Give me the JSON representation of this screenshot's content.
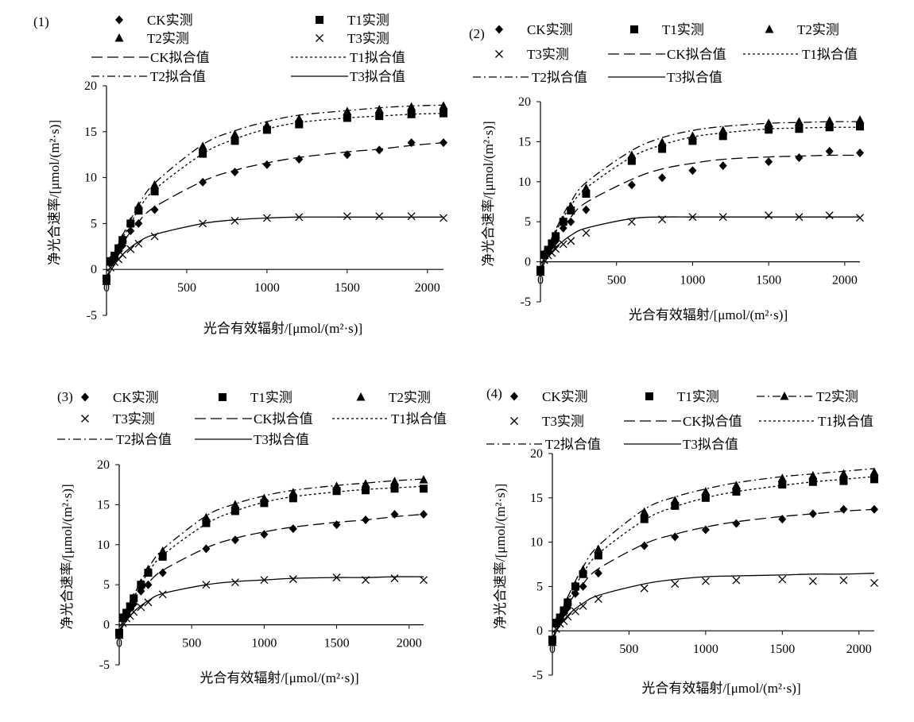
{
  "chart_data": [
    {
      "type": "scatter",
      "panel_label": "(1)",
      "xlabel": "光合有效辐射/[μmol/(m²·s)]",
      "ylabel": "净光合速率/[μmol/(m²·s)]",
      "xlim": [
        0,
        2100
      ],
      "ylim": [
        -5,
        20
      ],
      "x_ticks": [
        0,
        500,
        1000,
        1500,
        2000
      ],
      "y_ticks": [
        -5,
        0,
        5,
        10,
        15,
        20
      ],
      "grid": false,
      "legend_position": "top",
      "x": [
        0,
        25,
        50,
        75,
        100,
        150,
        200,
        300,
        600,
        800,
        1000,
        1200,
        1500,
        1700,
        1900,
        2100
      ],
      "series": [
        {
          "name": "CK实测",
          "kind": "measured",
          "marker": "diamond",
          "values": [
            -1.2,
            1.0,
            1.3,
            2.0,
            2.6,
            4.2,
            5.0,
            6.5,
            9.5,
            10.6,
            11.4,
            12.0,
            12.5,
            13.0,
            13.8,
            13.8
          ]
        },
        {
          "name": "T1实测",
          "kind": "measured",
          "marker": "square",
          "values": [
            -1.0,
            0.9,
            1.5,
            2.3,
            3.2,
            5.0,
            6.4,
            8.5,
            12.6,
            14.0,
            15.2,
            15.8,
            16.5,
            16.7,
            16.9,
            17.0
          ]
        },
        {
          "name": "T2实测",
          "kind": "measured",
          "marker": "triangle",
          "values": [
            -1.3,
            0.8,
            1.4,
            2.4,
            3.4,
            5.2,
            6.9,
            9.2,
            13.4,
            14.7,
            15.7,
            16.4,
            17.2,
            17.4,
            17.7,
            17.8
          ]
        },
        {
          "name": "T3实测",
          "kind": "measured",
          "marker": "cross",
          "values": [
            -1.1,
            0.2,
            0.8,
            1.1,
            1.6,
            2.2,
            2.8,
            3.6,
            5.0,
            5.3,
            5.6,
            5.7,
            5.8,
            5.8,
            5.8,
            5.6
          ]
        },
        {
          "name": "CK拟合值",
          "kind": "fit",
          "dash": "long-dash",
          "values": [
            -1.3,
            0.3,
            1.2,
            2.0,
            2.8,
            4.1,
            5.2,
            6.8,
            9.6,
            10.8,
            11.6,
            12.2,
            12.8,
            13.1,
            13.5,
            13.8
          ]
        },
        {
          "name": "T1拟合值",
          "kind": "fit",
          "dash": "dotted",
          "values": [
            -1.2,
            0.6,
            1.6,
            2.5,
            3.4,
            5.0,
            6.5,
            8.7,
            12.6,
            14.2,
            15.3,
            16.0,
            16.5,
            16.7,
            16.9,
            17.0
          ]
        },
        {
          "name": "T2拟合值",
          "kind": "fit",
          "dash": "dash-dot",
          "values": [
            -1.3,
            0.7,
            1.7,
            2.7,
            3.7,
            5.4,
            7.0,
            9.4,
            13.6,
            15.1,
            16.1,
            16.8,
            17.3,
            17.6,
            17.8,
            17.9
          ]
        },
        {
          "name": "T3拟合值",
          "kind": "fit",
          "dash": "solid",
          "values": [
            -1.2,
            -0.2,
            0.5,
            1.1,
            1.6,
            2.4,
            3.0,
            3.8,
            5.0,
            5.4,
            5.6,
            5.7,
            5.7,
            5.7,
            5.7,
            5.7
          ]
        }
      ]
    },
    {
      "type": "scatter",
      "panel_label": "(2)",
      "xlabel": "光合有效辐射/[μmol/(m²·s)]",
      "ylabel": "净光合速率/[μmol/(m²·s)]",
      "xlim": [
        0,
        2100
      ],
      "ylim": [
        -5,
        20
      ],
      "x_ticks": [
        0,
        500,
        1000,
        1500,
        2000
      ],
      "y_ticks": [
        -5,
        0,
        5,
        10,
        15,
        20
      ],
      "grid": false,
      "legend_position": "top",
      "x": [
        0,
        25,
        50,
        75,
        100,
        150,
        200,
        300,
        600,
        800,
        1000,
        1200,
        1500,
        1700,
        1900,
        2100
      ],
      "series": [
        {
          "name": "CK实测",
          "kind": "measured",
          "marker": "diamond",
          "values": [
            -1.2,
            1.0,
            1.3,
            2.0,
            2.6,
            4.2,
            5.0,
            6.5,
            9.6,
            10.5,
            11.4,
            12.0,
            12.5,
            13.0,
            13.8,
            13.6
          ]
        },
        {
          "name": "T1实测",
          "kind": "measured",
          "marker": "square",
          "values": [
            -1.0,
            0.9,
            1.5,
            2.3,
            3.2,
            5.0,
            6.4,
            8.5,
            12.6,
            14.1,
            15.1,
            15.7,
            16.5,
            16.6,
            16.8,
            16.9
          ]
        },
        {
          "name": "T2实测",
          "kind": "measured",
          "marker": "triangle",
          "values": [
            -1.3,
            0.8,
            1.4,
            2.4,
            3.4,
            5.2,
            6.9,
            9.2,
            13.3,
            14.9,
            15.7,
            16.4,
            17.3,
            17.5,
            17.6,
            17.7
          ]
        },
        {
          "name": "T3实测",
          "kind": "measured",
          "marker": "cross",
          "values": [
            -1.1,
            0.2,
            0.8,
            1.1,
            1.6,
            2.2,
            2.6,
            3.6,
            5.0,
            5.3,
            5.6,
            5.6,
            5.8,
            5.6,
            5.8,
            5.5
          ]
        },
        {
          "name": "CK拟合值",
          "kind": "fit",
          "dash": "long-dash",
          "values": [
            -1.3,
            0.4,
            1.3,
            2.2,
            3.0,
            4.4,
            5.6,
            7.4,
            10.3,
            11.6,
            12.3,
            12.8,
            13.1,
            13.2,
            13.3,
            13.3
          ]
        },
        {
          "name": "T1拟合值",
          "kind": "fit",
          "dash": "dotted",
          "values": [
            -1.2,
            0.6,
            1.7,
            2.7,
            3.7,
            5.5,
            7.0,
            9.2,
            13.1,
            14.6,
            15.6,
            16.1,
            16.6,
            16.7,
            16.8,
            16.8
          ]
        },
        {
          "name": "T2拟合值",
          "kind": "fit",
          "dash": "dash-dot",
          "values": [
            -1.3,
            0.8,
            1.9,
            3.0,
            4.0,
            5.9,
            7.5,
            9.9,
            13.9,
            15.5,
            16.4,
            16.9,
            17.3,
            17.4,
            17.5,
            17.5
          ]
        },
        {
          "name": "T3拟合值",
          "kind": "fit",
          "dash": "solid",
          "values": [
            -1.2,
            -0.2,
            0.6,
            1.2,
            1.8,
            2.6,
            3.3,
            4.2,
            5.4,
            5.6,
            5.6,
            5.6,
            5.6,
            5.6,
            5.6,
            5.6
          ]
        }
      ]
    },
    {
      "type": "scatter",
      "panel_label": "(3)",
      "xlabel": "光合有效辐射/[μmol/(m²·s)]",
      "ylabel": "净光合速率/[μmol/(m²·s)]",
      "xlim": [
        0,
        2100
      ],
      "ylim": [
        -5,
        20
      ],
      "x_ticks": [
        0,
        500,
        1000,
        1500,
        2000
      ],
      "y_ticks": [
        -5,
        0,
        5,
        10,
        15,
        20
      ],
      "grid": false,
      "legend_position": "top",
      "x": [
        0,
        25,
        50,
        75,
        100,
        150,
        200,
        300,
        600,
        800,
        1000,
        1200,
        1500,
        1700,
        1900,
        2100
      ],
      "series": [
        {
          "name": "CK实测",
          "kind": "measured",
          "marker": "diamond",
          "values": [
            -1.2,
            1.0,
            1.3,
            2.0,
            2.6,
            4.2,
            5.0,
            6.5,
            9.5,
            10.6,
            11.3,
            12.0,
            12.5,
            13.1,
            13.8,
            13.8
          ]
        },
        {
          "name": "T1实测",
          "kind": "measured",
          "marker": "square",
          "values": [
            -1.0,
            0.9,
            1.5,
            2.3,
            3.3,
            5.0,
            6.5,
            8.5,
            12.7,
            14.2,
            15.2,
            15.8,
            16.7,
            16.8,
            17.0,
            17.0
          ]
        },
        {
          "name": "T2实测",
          "kind": "measured",
          "marker": "triangle",
          "values": [
            -1.3,
            0.8,
            1.4,
            2.4,
            3.4,
            5.2,
            6.9,
            9.2,
            13.4,
            15.0,
            15.8,
            16.5,
            17.3,
            17.6,
            17.9,
            18.1
          ]
        },
        {
          "name": "T3实测",
          "kind": "measured",
          "marker": "cross",
          "values": [
            -1.1,
            0.2,
            0.8,
            1.1,
            1.6,
            2.2,
            2.8,
            3.8,
            5.0,
            5.3,
            5.6,
            5.7,
            5.9,
            5.6,
            5.8,
            5.6
          ]
        },
        {
          "name": "CK拟合值",
          "kind": "fit",
          "dash": "long-dash",
          "values": [
            -1.3,
            0.3,
            1.2,
            2.0,
            2.8,
            4.1,
            5.2,
            6.8,
            9.6,
            10.8,
            11.6,
            12.2,
            12.8,
            13.1,
            13.5,
            13.8
          ]
        },
        {
          "name": "T1拟合值",
          "kind": "fit",
          "dash": "dotted",
          "values": [
            -1.2,
            0.6,
            1.6,
            2.5,
            3.4,
            5.0,
            6.5,
            8.7,
            12.6,
            14.2,
            15.3,
            16.0,
            16.6,
            16.9,
            17.1,
            17.3
          ]
        },
        {
          "name": "T2拟合值",
          "kind": "fit",
          "dash": "dash-dot",
          "values": [
            -1.3,
            0.7,
            1.7,
            2.7,
            3.7,
            5.4,
            7.0,
            9.4,
            13.6,
            15.1,
            16.1,
            16.8,
            17.4,
            17.7,
            18.0,
            18.2
          ]
        },
        {
          "name": "T3拟合值",
          "kind": "fit",
          "dash": "solid",
          "values": [
            -1.2,
            -0.2,
            0.5,
            1.1,
            1.6,
            2.4,
            3.0,
            3.9,
            5.0,
            5.4,
            5.6,
            5.8,
            5.9,
            5.9,
            6.0,
            6.0
          ]
        }
      ]
    },
    {
      "type": "scatter",
      "panel_label": "(4)",
      "xlabel": "光合有效辐射/[μmol/(m²·s)]",
      "ylabel": "净光合速率/[μmol/(m²·s)]",
      "xlim": [
        0,
        2100
      ],
      "ylim": [
        -5,
        20
      ],
      "x_ticks": [
        0,
        500,
        1000,
        1500,
        2000
      ],
      "y_ticks": [
        -5,
        0,
        5,
        10,
        15,
        20
      ],
      "grid": false,
      "legend_position": "top",
      "x": [
        0,
        25,
        50,
        75,
        100,
        150,
        200,
        300,
        600,
        800,
        1000,
        1200,
        1500,
        1700,
        1900,
        2100
      ],
      "series": [
        {
          "name": "CK实测",
          "kind": "measured",
          "marker": "diamond",
          "values": [
            -1.2,
            1.0,
            1.3,
            2.0,
            2.6,
            4.2,
            5.0,
            6.5,
            9.6,
            10.6,
            11.4,
            12.1,
            12.6,
            13.2,
            13.7,
            13.7
          ]
        },
        {
          "name": "T1实测",
          "kind": "measured",
          "marker": "square",
          "values": [
            -1.0,
            0.9,
            1.5,
            2.3,
            3.2,
            5.0,
            6.4,
            8.5,
            12.6,
            14.1,
            15.0,
            15.7,
            16.5,
            16.8,
            16.9,
            17.1
          ]
        },
        {
          "name": "T2实测",
          "kind": "measured",
          "marker": "triangle",
          "values": [
            -1.3,
            0.8,
            1.4,
            2.4,
            3.4,
            5.2,
            6.9,
            9.2,
            13.4,
            14.7,
            15.7,
            16.4,
            17.2,
            17.5,
            17.7,
            17.9
          ]
        },
        {
          "name": "T3实测",
          "kind": "measured",
          "marker": "cross",
          "values": [
            -1.1,
            0.2,
            0.8,
            1.1,
            1.6,
            2.2,
            2.8,
            3.6,
            4.8,
            5.3,
            5.6,
            5.7,
            5.8,
            5.6,
            5.7,
            5.4
          ]
        },
        {
          "name": "CK拟合值",
          "kind": "fit",
          "dash": "long-dash",
          "values": [
            -1.3,
            0.4,
            1.3,
            2.1,
            2.9,
            4.2,
            5.3,
            7.0,
            9.8,
            10.9,
            11.7,
            12.3,
            12.9,
            13.2,
            13.5,
            13.7
          ]
        },
        {
          "name": "T1拟合值",
          "kind": "fit",
          "dash": "dotted",
          "values": [
            -1.2,
            0.6,
            1.6,
            2.5,
            3.4,
            5.0,
            6.5,
            8.7,
            12.5,
            14.0,
            15.0,
            15.7,
            16.4,
            16.8,
            17.1,
            17.4
          ]
        },
        {
          "name": "T2拟合值",
          "kind": "fit",
          "dash": "dash-dot",
          "values": [
            -1.3,
            0.8,
            1.8,
            2.8,
            3.8,
            5.6,
            7.2,
            9.6,
            13.7,
            15.1,
            16.0,
            16.7,
            17.4,
            17.7,
            18.0,
            18.3
          ]
        },
        {
          "name": "T3拟合值",
          "kind": "fit",
          "dash": "solid",
          "values": [
            -1.2,
            -0.1,
            0.6,
            1.2,
            1.7,
            2.5,
            3.1,
            4.0,
            5.3,
            5.8,
            6.1,
            6.2,
            6.3,
            6.4,
            6.4,
            6.5
          ]
        }
      ]
    }
  ]
}
